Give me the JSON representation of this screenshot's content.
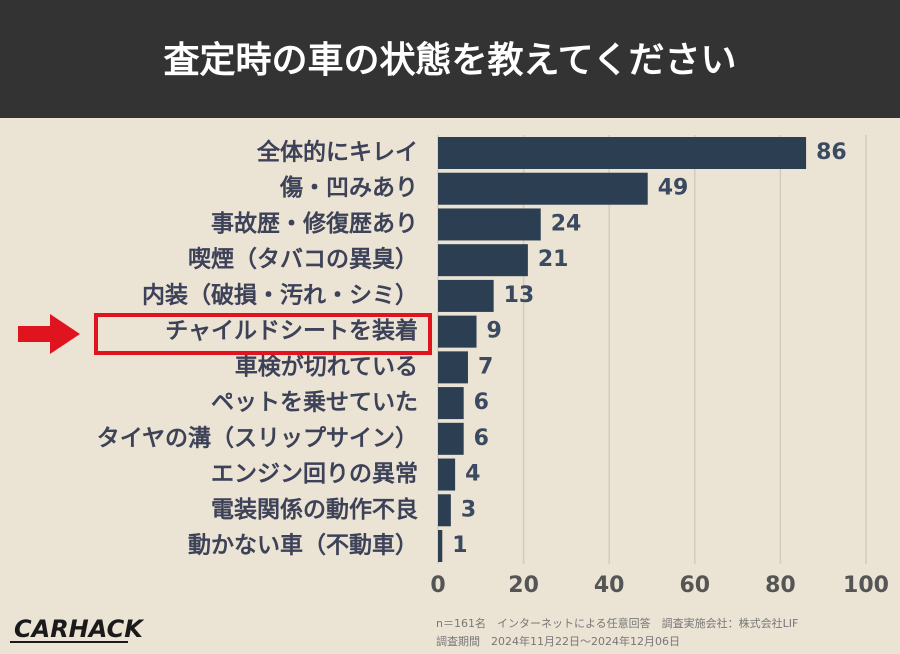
{
  "chart_data": {
    "type": "barh",
    "title": "査定時の車の状態を教えてください",
    "categories": [
      "全体的にキレイ",
      "傷・凹みあり",
      "事故歴・修復歴あり",
      "喫煙（タバコの異臭）",
      "内装（破損・汚れ・シミ）",
      "チャイルドシートを装着",
      "車検が切れている",
      "ペットを乗せていた",
      "タイヤの溝（スリップサイン）",
      "エンジン回りの異常",
      "電装関係の動作不良",
      "動かない車（不動車）"
    ],
    "values": [
      86,
      49,
      24,
      21,
      13,
      9,
      7,
      6,
      6,
      4,
      3,
      1
    ],
    "color": "#2b3e52",
    "xlim": [
      0,
      100
    ],
    "xticks": [
      0,
      20,
      40,
      60,
      80,
      100
    ],
    "grid": true,
    "logo": "CARHACK",
    "notes": [
      "n＝161名　インターネットによる任意回答　調査実施会社：株式会社LIF",
      "調査期間　2024年11月22日～2024年12月06日"
    ]
  }
}
